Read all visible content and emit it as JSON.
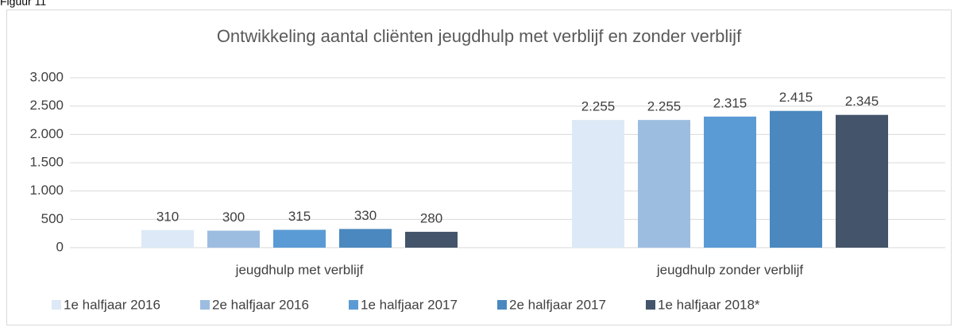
{
  "figure_label": "Figuur 11",
  "chart_data": {
    "type": "bar",
    "title": "Ontwikkeling aantal cliënten jeugdhulp met verblijf en zonder verblijf",
    "categories": [
      "jeugdhulp met verblijf",
      "jeugdhulp zonder verblijf"
    ],
    "series": [
      {
        "name": "1e halfjaar 2016",
        "color": "#dde9f6",
        "values": [
          310,
          2255
        ],
        "value_labels": [
          "310",
          "2.255"
        ]
      },
      {
        "name": "2e halfjaar 2016",
        "color": "#9dbde0",
        "values": [
          300,
          2255
        ],
        "value_labels": [
          "300",
          "2.255"
        ]
      },
      {
        "name": "1e halfjaar 2017",
        "color": "#5b9bd5",
        "values": [
          315,
          2315
        ],
        "value_labels": [
          "315",
          "2.315"
        ]
      },
      {
        "name": "2e halfjaar 2017",
        "color": "#4a88bf",
        "values": [
          330,
          2415
        ],
        "value_labels": [
          "330",
          "2.415"
        ]
      },
      {
        "name": "1e halfjaar 2018*",
        "color": "#44546a",
        "values": [
          280,
          2345
        ],
        "value_labels": [
          "280",
          "2.345"
        ]
      }
    ],
    "ylim": [
      0,
      3000
    ],
    "yticks": [
      0,
      500,
      {
        "value": 1000,
        "label": "1.000"
      },
      {
        "value": 1500,
        "label": "1.500"
      },
      {
        "value": 2000,
        "label": "2.000"
      },
      {
        "value": 2500,
        "label": "2.500"
      },
      {
        "value": 3000,
        "label": "3.000"
      }
    ],
    "grid": true,
    "legend": "bottom"
  }
}
